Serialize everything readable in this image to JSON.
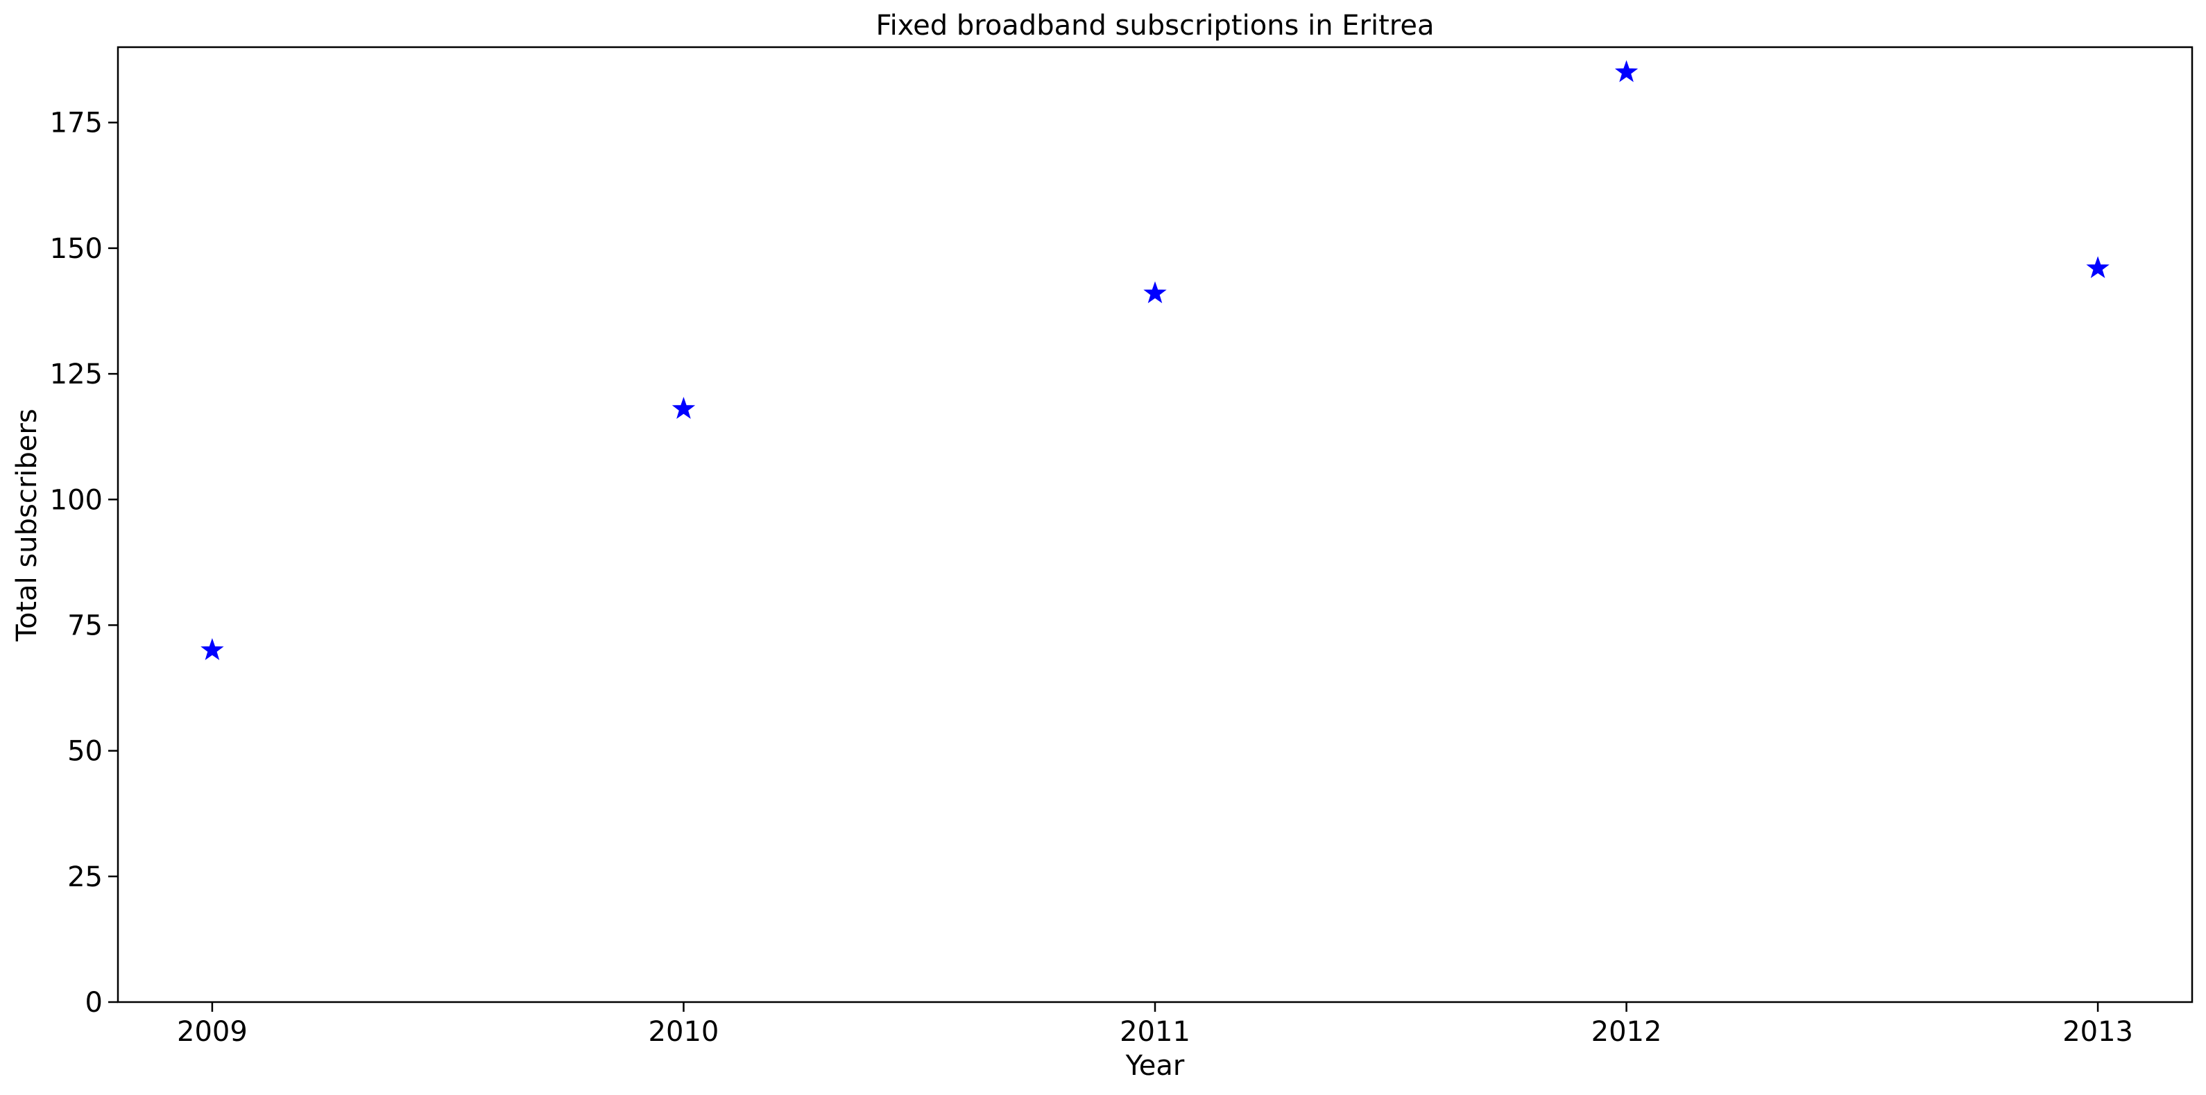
{
  "chart_data": {
    "type": "scatter",
    "title": "Fixed broadband subscriptions in Eritrea",
    "xlabel": "Year",
    "ylabel": "Total subscribers",
    "x": [
      2009,
      2010,
      2011,
      2012,
      2013
    ],
    "series": [
      {
        "values": [
          70,
          118,
          141,
          185,
          146
        ],
        "marker": "star",
        "color": "#0000ff"
      }
    ],
    "x_ticks": [
      "2009",
      "2010",
      "2011",
      "2012",
      "2013"
    ],
    "y_ticks": [
      "0",
      "25",
      "50",
      "75",
      "100",
      "125",
      "150",
      "175"
    ],
    "xlim": [
      2008.8,
      2013.2
    ],
    "ylim": [
      0,
      190
    ],
    "grid": false
  }
}
